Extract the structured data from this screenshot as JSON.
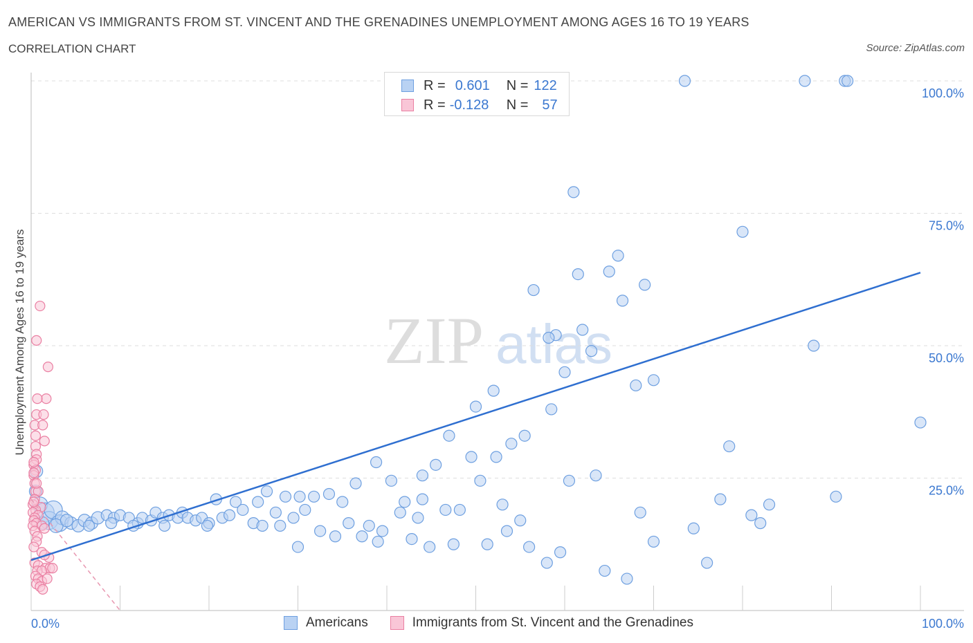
{
  "header": {
    "title": "AMERICAN VS IMMIGRANTS FROM ST. VINCENT AND THE GRENADINES UNEMPLOYMENT AMONG AGES 16 TO 19 YEARS",
    "subtitle": "CORRELATION CHART",
    "source": "Source: ZipAtlas.com"
  },
  "legend": {
    "row1": {
      "r_label": "R =",
      "r_value": "0.601",
      "n_label": "N =",
      "n_value": "122"
    },
    "row2": {
      "r_label": "R =",
      "r_value": "-0.128",
      "n_label": "N =",
      "n_value": "57"
    }
  },
  "bottom_legend": {
    "americans": "Americans",
    "immigrants": "Immigrants from St. Vincent and the Grenadines"
  },
  "colors": {
    "blue_fill": "#b9d2f3",
    "blue_stroke": "#6d9fe0",
    "blue_line": "#2f6fd0",
    "pink_fill": "#f9c6d7",
    "pink_stroke": "#ea7fa2",
    "pink_line": "#e897b0",
    "axis_text": "#3b78d0",
    "grid": "#dddddd"
  },
  "chart_data": {
    "type": "scatter",
    "title": "AMERICAN VS IMMIGRANTS FROM ST. VINCENT AND THE GRENADINES UNEMPLOYMENT AMONG AGES 16 TO 19 YEARS",
    "xlabel": "",
    "ylabel": "Unemployment Among Ages 16 to 19 years",
    "xlim": [
      0,
      100
    ],
    "ylim": [
      0,
      100
    ],
    "x_tick_labels": [
      "0.0%",
      "100.0%"
    ],
    "y_ticks": [
      25,
      50,
      75,
      100
    ],
    "y_tick_labels": [
      "25.0%",
      "50.0%",
      "75.0%",
      "100.0%"
    ],
    "grid": "horizontal dashed",
    "watermark": "ZIPatlas",
    "series": [
      {
        "name": "Americans",
        "color": "blue",
        "R": 0.601,
        "N": 122,
        "trend": {
          "x": [
            0,
            100
          ],
          "y": [
            9.5,
            63.8
          ]
        },
        "points": [
          [
            0.6,
            26.3,
            9
          ],
          [
            0.5,
            22.5,
            9
          ],
          [
            1.0,
            20.0,
            11
          ],
          [
            1.5,
            18.5,
            14
          ],
          [
            2.0,
            17.0,
            13
          ],
          [
            2.5,
            19.0,
            13
          ],
          [
            3.2,
            16.5,
            12
          ],
          [
            3.5,
            17.5,
            10
          ],
          [
            4.5,
            16.5,
            9
          ],
          [
            5.3,
            16.0,
            9
          ],
          [
            6.0,
            17.0,
            9
          ],
          [
            6.8,
            16.5,
            9
          ],
          [
            7.5,
            17.5,
            9
          ],
          [
            8.5,
            18.0,
            8
          ],
          [
            9.3,
            17.5,
            8
          ],
          [
            10.0,
            18.0,
            8
          ],
          [
            11.0,
            17.5,
            8
          ],
          [
            12.0,
            16.5,
            8
          ],
          [
            12.5,
            17.5,
            8
          ],
          [
            13.5,
            17.0,
            8
          ],
          [
            14.0,
            18.5,
            8
          ],
          [
            14.8,
            17.5,
            8
          ],
          [
            15.5,
            18.0,
            8
          ],
          [
            16.5,
            17.5,
            8
          ],
          [
            17.0,
            18.5,
            8
          ],
          [
            17.6,
            17.5,
            8
          ],
          [
            18.5,
            17.0,
            8
          ],
          [
            19.2,
            17.5,
            8
          ],
          [
            20.0,
            16.5,
            8
          ],
          [
            20.8,
            21.0,
            8
          ],
          [
            21.5,
            17.5,
            8
          ],
          [
            22.3,
            18.0,
            8
          ],
          [
            23.0,
            20.5,
            8
          ],
          [
            23.8,
            19.0,
            8
          ],
          [
            25.0,
            16.5,
            8
          ],
          [
            25.5,
            20.5,
            8
          ],
          [
            26.5,
            22.5,
            8
          ],
          [
            27.5,
            18.5,
            8
          ],
          [
            28.0,
            16.0,
            8
          ],
          [
            28.6,
            21.5,
            8
          ],
          [
            29.5,
            17.5,
            8
          ],
          [
            30.2,
            21.5,
            8
          ],
          [
            30.8,
            19.0,
            8
          ],
          [
            31.8,
            21.5,
            8
          ],
          [
            32.5,
            15.0,
            8
          ],
          [
            33.5,
            22.0,
            8
          ],
          [
            34.2,
            14.0,
            8
          ],
          [
            35.0,
            20.5,
            8
          ],
          [
            35.7,
            16.5,
            8
          ],
          [
            36.5,
            24.0,
            8
          ],
          [
            37.2,
            14.0,
            8
          ],
          [
            38.0,
            16.0,
            8
          ],
          [
            38.8,
            28.0,
            8
          ],
          [
            39.5,
            15.0,
            8
          ],
          [
            40.5,
            24.5,
            8
          ],
          [
            41.5,
            18.5,
            8
          ],
          [
            42.0,
            20.5,
            8
          ],
          [
            42.8,
            13.5,
            8
          ],
          [
            43.5,
            17.5,
            8
          ],
          [
            44.0,
            25.5,
            8
          ],
          [
            44.8,
            12.0,
            8
          ],
          [
            45.5,
            27.5,
            8
          ],
          [
            46.6,
            19.0,
            8
          ],
          [
            47.5,
            12.5,
            8
          ],
          [
            48.2,
            19.0,
            8
          ],
          [
            47.0,
            33.0,
            8
          ],
          [
            49.5,
            29.0,
            8
          ],
          [
            50.5,
            24.5,
            8
          ],
          [
            51.3,
            12.5,
            8
          ],
          [
            52.3,
            29.0,
            8
          ],
          [
            53.5,
            15.0,
            8
          ],
          [
            54.0,
            31.5,
            8
          ],
          [
            55.0,
            17.0,
            8
          ],
          [
            55.5,
            33.0,
            8
          ],
          [
            56.0,
            12.0,
            8
          ],
          [
            58.0,
            9.0,
            8
          ],
          [
            59.0,
            52.0,
            8
          ],
          [
            59.5,
            11.0,
            8
          ],
          [
            60.5,
            24.5,
            8
          ],
          [
            56.5,
            60.5,
            8
          ],
          [
            61.5,
            63.5,
            8
          ],
          [
            62.0,
            53.0,
            8
          ],
          [
            63.0,
            49.0,
            8
          ],
          [
            64.5,
            7.5,
            8
          ],
          [
            63.5,
            25.5,
            8
          ],
          [
            65.0,
            64.0,
            8
          ],
          [
            66.0,
            67.0,
            8
          ],
          [
            66.5,
            58.5,
            8
          ],
          [
            67.0,
            6.0,
            8
          ],
          [
            68.5,
            18.5,
            8
          ],
          [
            69.0,
            61.5,
            8
          ],
          [
            50.0,
            38.5,
            8
          ],
          [
            52.0,
            41.5,
            8
          ],
          [
            58.2,
            51.5,
            8
          ],
          [
            58.5,
            38.0,
            8
          ],
          [
            61.0,
            79.0,
            8
          ],
          [
            68.0,
            42.5,
            8
          ],
          [
            70.0,
            43.5,
            8
          ],
          [
            74.5,
            15.5,
            8
          ],
          [
            76.0,
            9.0,
            8
          ],
          [
            77.5,
            21.0,
            8
          ],
          [
            78.5,
            31.0,
            8
          ],
          [
            80.0,
            71.5,
            8
          ],
          [
            81.0,
            18.0,
            8
          ],
          [
            82.0,
            16.5,
            8
          ],
          [
            88.0,
            50.0,
            8
          ],
          [
            90.5,
            21.5,
            8
          ],
          [
            73.5,
            100.0,
            8
          ],
          [
            87.0,
            100.0,
            8
          ],
          [
            91.5,
            100.0,
            8
          ],
          [
            91.8,
            100.0,
            8
          ],
          [
            100.0,
            35.5,
            8
          ],
          [
            1.3,
            16.5,
            9
          ],
          [
            2.8,
            16.0,
            10
          ],
          [
            4.0,
            17.0,
            9
          ],
          [
            6.5,
            16.0,
            8
          ],
          [
            9.0,
            16.5,
            8
          ],
          [
            11.5,
            16.0,
            8
          ],
          [
            15.0,
            16.0,
            8
          ],
          [
            19.8,
            16.0,
            8
          ],
          [
            26.0,
            16.0,
            8
          ],
          [
            30.0,
            12.0,
            8
          ],
          [
            39.0,
            13.0,
            8
          ],
          [
            44.0,
            21.0,
            8
          ],
          [
            53.0,
            20.0,
            8
          ],
          [
            70.0,
            13.0,
            8
          ],
          [
            83.0,
            20.0,
            8
          ],
          [
            60.0,
            45.0,
            8
          ]
        ]
      },
      {
        "name": "Immigrants from St. Vincent and the Grenadines",
        "color": "pink",
        "R": -0.128,
        "N": 57,
        "trend": {
          "x": [
            0,
            10
          ],
          "y": [
            21.0,
            0
          ]
        },
        "points": [
          [
            1.0,
            57.5
          ],
          [
            0.6,
            51.0
          ],
          [
            1.9,
            46.0
          ],
          [
            1.7,
            40.0
          ],
          [
            0.7,
            40.0
          ],
          [
            0.6,
            37.0
          ],
          [
            1.4,
            37.0
          ],
          [
            0.4,
            35.0
          ],
          [
            1.3,
            35.0
          ],
          [
            0.5,
            33.0
          ],
          [
            1.5,
            32.0
          ],
          [
            0.5,
            31.0
          ],
          [
            0.6,
            29.5
          ],
          [
            0.6,
            28.5
          ],
          [
            0.3,
            27.5
          ],
          [
            0.5,
            26.5
          ],
          [
            0.3,
            25.5
          ],
          [
            0.4,
            24.0
          ],
          [
            0.5,
            22.5
          ],
          [
            0.8,
            22.5
          ],
          [
            0.4,
            21.0
          ],
          [
            0.2,
            20.0
          ],
          [
            1.1,
            19.5
          ],
          [
            0.5,
            19.0
          ],
          [
            0.2,
            18.5
          ],
          [
            0.8,
            18.0
          ],
          [
            0.4,
            17.5
          ],
          [
            0.3,
            17.0
          ],
          [
            0.6,
            16.5
          ],
          [
            0.2,
            16.0
          ],
          [
            1.2,
            16.0
          ],
          [
            1.5,
            15.5
          ],
          [
            0.4,
            15.0
          ],
          [
            0.7,
            14.0
          ],
          [
            0.6,
            13.0
          ],
          [
            1.2,
            11.0
          ],
          [
            2.0,
            10.0
          ],
          [
            1.5,
            10.5
          ],
          [
            0.4,
            9.0
          ],
          [
            0.8,
            8.5
          ],
          [
            1.6,
            8.0
          ],
          [
            2.1,
            8.0
          ],
          [
            2.4,
            8.0
          ],
          [
            0.7,
            7.5
          ],
          [
            1.2,
            7.5
          ],
          [
            0.5,
            6.5
          ],
          [
            0.8,
            6.0
          ],
          [
            1.2,
            5.5
          ],
          [
            0.6,
            5.0
          ],
          [
            1.0,
            4.5
          ],
          [
            1.3,
            4.0
          ],
          [
            0.3,
            28.0
          ],
          [
            0.3,
            26.0
          ],
          [
            0.6,
            24.0
          ],
          [
            0.3,
            12.0
          ],
          [
            1.8,
            6.0
          ],
          [
            0.3,
            20.5
          ]
        ]
      }
    ]
  }
}
